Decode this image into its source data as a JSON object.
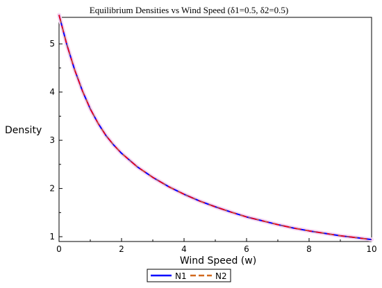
{
  "chart_data": {
    "type": "line",
    "title": "Equilibrium Densities vs Wind Speed (δ1=0.5, δ2=0.5)",
    "xlabel": "Wind Speed (w)",
    "ylabel": "Density",
    "xlim": [
      0,
      10
    ],
    "ylim": [
      0.9,
      5.55
    ],
    "x_ticks": [
      0,
      2,
      4,
      6,
      8,
      10
    ],
    "y_ticks": [
      1,
      2,
      3,
      4,
      5
    ],
    "x_tick_labels": [
      "0",
      "2",
      "4",
      "6",
      "8",
      "10"
    ],
    "y_tick_labels": [
      "1",
      "2",
      "3",
      "4",
      "5"
    ],
    "grid": false,
    "legend_position": "bottom",
    "x": [
      0,
      0.25,
      0.5,
      0.75,
      1,
      1.25,
      1.5,
      1.75,
      2,
      2.5,
      3,
      3.5,
      4,
      4.5,
      5,
      5.5,
      6,
      6.5,
      7,
      7.5,
      8,
      8.5,
      9,
      9.5,
      10
    ],
    "series": [
      {
        "name": "N1",
        "color": "#0000ff",
        "style": "solid",
        "values": [
          5.6,
          4.98,
          4.46,
          4.02,
          3.65,
          3.35,
          3.1,
          2.9,
          2.73,
          2.45,
          2.23,
          2.04,
          1.88,
          1.74,
          1.62,
          1.51,
          1.41,
          1.33,
          1.25,
          1.18,
          1.12,
          1.07,
          1.02,
          0.98,
          0.94
        ]
      },
      {
        "name": "N2",
        "color": "#d2691e",
        "style": "dashed",
        "values": [
          5.6,
          4.98,
          4.46,
          4.02,
          3.65,
          3.35,
          3.1,
          2.9,
          2.73,
          2.45,
          2.23,
          2.04,
          1.88,
          1.74,
          1.62,
          1.51,
          1.41,
          1.33,
          1.25,
          1.18,
          1.12,
          1.07,
          1.02,
          0.98,
          0.94
        ]
      }
    ],
    "overlay_color": "#ff0000"
  }
}
